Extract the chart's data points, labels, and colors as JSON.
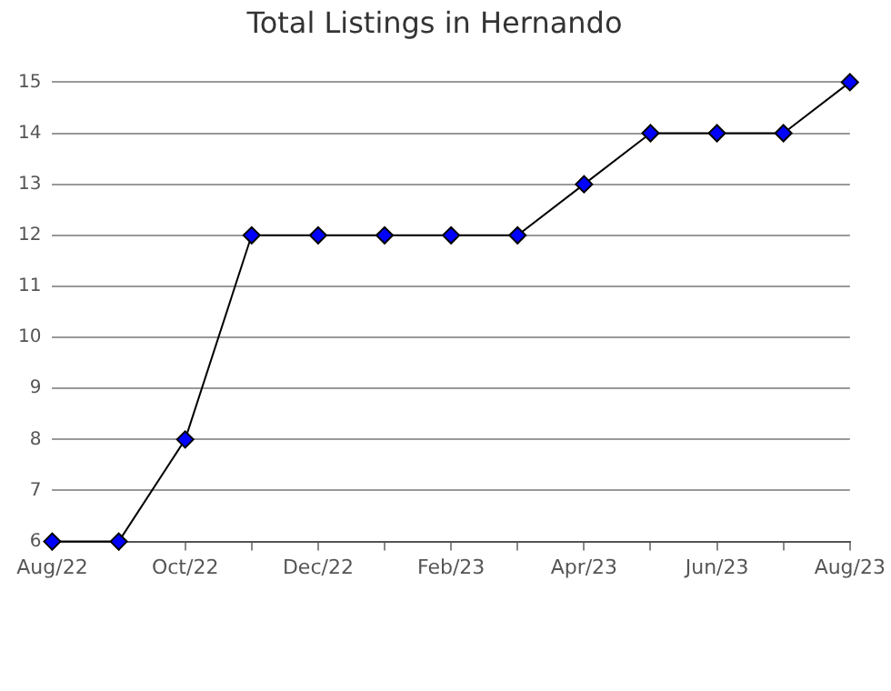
{
  "chart_data": {
    "type": "line",
    "title": "Total Listings in Hernando",
    "categories": [
      "Aug/22",
      null,
      "Oct/22",
      null,
      "Dec/22",
      null,
      "Feb/23",
      null,
      "Apr/23",
      null,
      "Jun/23",
      null,
      "Aug/23"
    ],
    "series": [
      {
        "color": "#0000ff",
        "values": [
          6,
          6,
          8,
          12,
          12,
          12,
          12,
          12,
          13,
          14,
          14,
          14,
          15
        ]
      }
    ],
    "ylim": [
      6,
      15
    ],
    "yticks": [
      6,
      7,
      8,
      9,
      10,
      11,
      12,
      13,
      14,
      15
    ],
    "grid": "y",
    "legend": false,
    "marker": "diamond",
    "line_style": "solid"
  }
}
